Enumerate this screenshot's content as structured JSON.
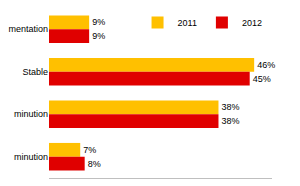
{
  "chart_data": {
    "type": "bar",
    "orientation": "horizontal",
    "categories": [
      "mentation",
      "Stable",
      "minution",
      "minution"
    ],
    "series": [
      {
        "name": "2011",
        "color": "#ffc000",
        "values": [
          9,
          46,
          38,
          7
        ],
        "value_labels": [
          "9%",
          "46%",
          "38%",
          "7%"
        ]
      },
      {
        "name": "2012",
        "color": "#e00000",
        "values": [
          9,
          45,
          38,
          8
        ],
        "value_labels": [
          "9%",
          "45%",
          "38%",
          "8%"
        ]
      }
    ],
    "xlim": [
      0,
      50
    ],
    "tick_labels": "y",
    "grid": false,
    "data_labels": true,
    "legend": "top right"
  }
}
